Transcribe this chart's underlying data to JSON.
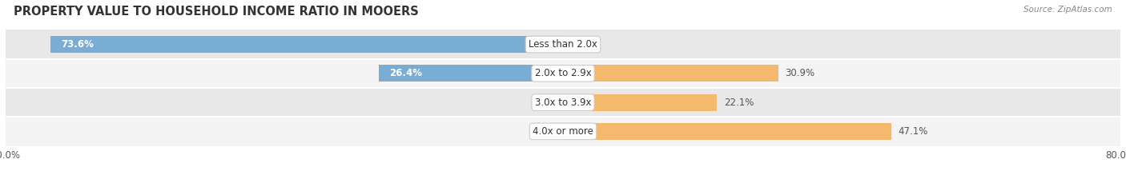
{
  "title": "PROPERTY VALUE TO HOUSEHOLD INCOME RATIO IN MOOERS",
  "source": "Source: ZipAtlas.com",
  "categories": [
    "Less than 2.0x",
    "2.0x to 2.9x",
    "3.0x to 3.9x",
    "4.0x or more"
  ],
  "without_mortgage": [
    73.6,
    26.4,
    0.0,
    0.0
  ],
  "with_mortgage": [
    0.0,
    30.9,
    22.1,
    47.1
  ],
  "color_without": "#7aadd4",
  "color_with": "#f5b96e",
  "xlim": [
    -80,
    80
  ],
  "row_colors": [
    "#e8e8e8",
    "#f4f4f4",
    "#e8e8e8",
    "#f4f4f4"
  ],
  "label_color": "#555555",
  "title_fontsize": 10.5,
  "bar_height": 0.58,
  "label_fontsize": 8.5,
  "cat_fontsize": 8.5
}
